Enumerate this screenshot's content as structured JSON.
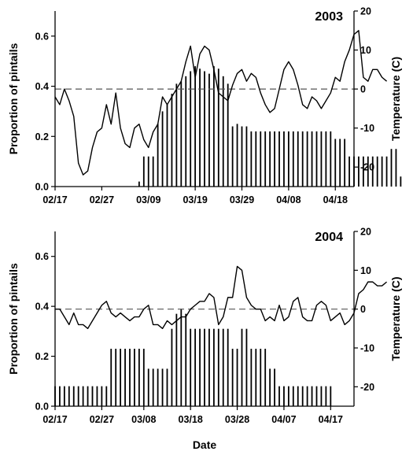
{
  "chart_data": [
    {
      "type": "bar",
      "title": "2003",
      "xlabel": "",
      "ylabel": "Proportion of pintails",
      "y2label": "Temperature (C)",
      "xlim": [
        "02/17",
        "04/22"
      ],
      "ylim": [
        0,
        0.7
      ],
      "y2lim": [
        -25,
        20
      ],
      "x_ticks": [
        "02/17",
        "02/27",
        "03/09",
        "03/19",
        "03/29",
        "04/08",
        "04/18"
      ],
      "y_ticks": [
        "0.0",
        "0.2",
        "0.4",
        "0.6"
      ],
      "y2_ticks": [
        "20",
        "10",
        "0",
        "-10",
        "-20"
      ],
      "reference_line": {
        "axis": "temperature",
        "value": 0,
        "style": "dashed"
      },
      "series": [
        {
          "kind": "bar",
          "axis": "proportion",
          "start_date": "03/07",
          "values": [
            0.02,
            0.12,
            0.12,
            0.12,
            0.25,
            0.3,
            0.33,
            0.37,
            0.41,
            0.42,
            0.44,
            0.46,
            0.48,
            0.47,
            0.46,
            0.45,
            0.48,
            0.47,
            0.44,
            0.41,
            0.24,
            0.25,
            0.24,
            0.24,
            0.22,
            0.22,
            0.22,
            0.22,
            0.22,
            0.22,
            0.22,
            0.22,
            0.22,
            0.22,
            0.22,
            0.22,
            0.22,
            0.22,
            0.22,
            0.22,
            0.22,
            0.22,
            0.19,
            0.19,
            0.19,
            0.12,
            0.12,
            0.12,
            0.12,
            0.12,
            0.12,
            0.12,
            0.12,
            0.12,
            0.15,
            0.15,
            0.04
          ]
        },
        {
          "kind": "line",
          "axis": "temperature",
          "start_date": "02/17",
          "values": [
            -2,
            -4,
            0,
            -3,
            -7,
            -19,
            -22,
            -21,
            -15,
            -11,
            -10,
            -4,
            -9,
            -1,
            -10,
            -14,
            -15,
            -10,
            -9,
            -13,
            -15,
            -11,
            -9,
            -2,
            -4,
            -2,
            0,
            2,
            7,
            11,
            3,
            9,
            11,
            10,
            5,
            -1,
            -2,
            -3,
            1,
            4,
            5,
            2,
            4,
            3,
            -1,
            -4,
            -6,
            -5,
            0,
            5,
            7,
            5,
            1,
            -4,
            -5,
            -2,
            -3,
            -5,
            -3,
            -1,
            3,
            2,
            7,
            10,
            14,
            15,
            3,
            2,
            5,
            5,
            3,
            2
          ]
        }
      ]
    },
    {
      "type": "bar",
      "title": "2004",
      "xlabel": "Date",
      "ylabel": "Proportion of pintails",
      "y2label": "Temperature (C)",
      "xlim": [
        "02/17",
        "04/22"
      ],
      "ylim": [
        0,
        0.7
      ],
      "y2lim": [
        -25,
        20
      ],
      "x_ticks": [
        "02/17",
        "02/27",
        "03/08",
        "03/18",
        "03/28",
        "04/07",
        "04/17"
      ],
      "y_ticks": [
        "0.0",
        "0.2",
        "0.4",
        "0.6"
      ],
      "y2_ticks": [
        "20",
        "10",
        "0",
        "-10",
        "-20"
      ],
      "reference_line": {
        "axis": "temperature",
        "value": 0,
        "style": "dashed"
      },
      "series": [
        {
          "kind": "bar",
          "axis": "proportion",
          "start_date": "02/17",
          "values": [
            0.08,
            0.08,
            0.08,
            0.08,
            0.08,
            0.08,
            0.08,
            0.08,
            0.08,
            0.08,
            0.08,
            0.08,
            0.23,
            0.23,
            0.23,
            0.23,
            0.23,
            0.23,
            0.23,
            0.23,
            0.15,
            0.15,
            0.15,
            0.15,
            0.15,
            0.31,
            0.37,
            0.39,
            0.37,
            0.31,
            0.31,
            0.31,
            0.31,
            0.31,
            0.31,
            0.31,
            0.31,
            0.31,
            0.23,
            0.23,
            0.31,
            0.31,
            0.23,
            0.23,
            0.23,
            0.23,
            0.15,
            0.15,
            0.08,
            0.08,
            0.08,
            0.08,
            0.08,
            0.08,
            0.08,
            0.08,
            0.08,
            0.08,
            0.08,
            0.08
          ]
        },
        {
          "kind": "line",
          "axis": "temperature",
          "start_date": "02/17",
          "values": [
            0,
            0,
            -2,
            -4,
            -1,
            -4,
            -4,
            -5,
            -3,
            -1,
            1,
            2,
            -1,
            -2,
            -1,
            -2,
            -3,
            -2,
            -2,
            0,
            1,
            -4,
            -4,
            -5,
            -3,
            -4,
            -3,
            -2,
            -2,
            0,
            1,
            2,
            2,
            4,
            3,
            -4,
            -2,
            3,
            3,
            11,
            10,
            3,
            1,
            0,
            0,
            -3,
            -2,
            -3,
            1,
            -3,
            -2,
            2,
            3,
            -2,
            -3,
            -3,
            1,
            2,
            1,
            -3,
            -2,
            -1,
            -4,
            -3,
            -1,
            4,
            5,
            7,
            7,
            6,
            6,
            7
          ]
        }
      ]
    }
  ]
}
